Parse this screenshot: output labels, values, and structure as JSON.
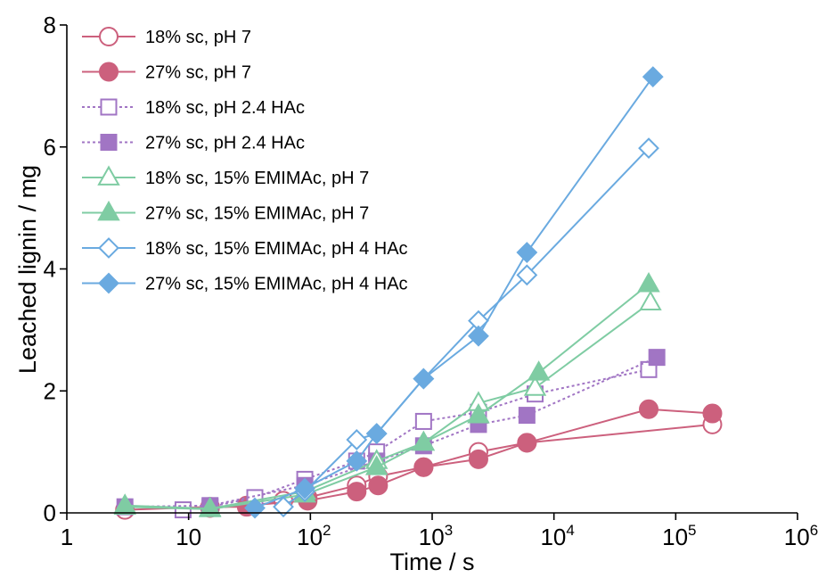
{
  "chart_data": {
    "type": "scatter",
    "xlabel": "Time / s",
    "ylabel": "Leached lignin / mg",
    "x_scale": "log",
    "xlim": [
      1,
      1000000
    ],
    "ylim": [
      0,
      8
    ],
    "x_ticks": [
      {
        "value": 1,
        "label": "1"
      },
      {
        "value": 10,
        "label": "10"
      },
      {
        "value": 100,
        "base": "10",
        "exp": "2"
      },
      {
        "value": 1000,
        "base": "10",
        "exp": "3"
      },
      {
        "value": 10000,
        "base": "10",
        "exp": "4"
      },
      {
        "value": 100000,
        "base": "10",
        "exp": "5"
      },
      {
        "value": 1000000,
        "base": "10",
        "exp": "6"
      }
    ],
    "y_ticks": [
      0,
      2,
      4,
      6,
      8
    ],
    "grid": false,
    "legend_position": "top-left",
    "series": [
      {
        "name": "18% sc, pH 7",
        "color": "#cc607d",
        "marker": "circle",
        "filled": false,
        "dashed": false,
        "x": [
          3,
          15,
          30,
          60,
          95,
          240,
          360,
          850,
          2400,
          6000,
          200000
        ],
        "y": [
          0.05,
          0.1,
          0.1,
          0.2,
          0.25,
          0.45,
          0.6,
          0.75,
          1.0,
          1.15,
          1.45
        ]
      },
      {
        "name": "27% sc, pH 7",
        "color": "#cc607d",
        "marker": "circle",
        "filled": true,
        "dashed": false,
        "x": [
          15,
          30,
          95,
          240,
          360,
          850,
          2400,
          6000,
          60000,
          200000
        ],
        "y": [
          0.08,
          0.12,
          0.2,
          0.35,
          0.45,
          0.75,
          0.88,
          1.15,
          1.7,
          1.63
        ]
      },
      {
        "name": "18% sc, pH 2.4 HAc",
        "color": "#a175c4",
        "marker": "square",
        "filled": false,
        "dashed": true,
        "x": [
          9,
          15,
          35,
          90,
          240,
          350,
          850,
          2400,
          7000,
          60000
        ],
        "y": [
          0.05,
          0.1,
          0.25,
          0.55,
          0.85,
          1.0,
          1.5,
          1.65,
          1.95,
          2.35
        ]
      },
      {
        "name": "27% sc, pH 2.4 HAc",
        "color": "#a175c4",
        "marker": "square",
        "filled": true,
        "dashed": true,
        "x": [
          3,
          15,
          90,
          350,
          850,
          2400,
          6000,
          70000
        ],
        "y": [
          0.1,
          0.12,
          0.45,
          0.85,
          1.1,
          1.45,
          1.6,
          2.55
        ]
      },
      {
        "name": "18% sc, 15% EMIMAc, pH 7",
        "color": "#7fcca3",
        "marker": "triangle",
        "filled": false,
        "dashed": false,
        "x": [
          3,
          15,
          90,
          350,
          850,
          2400,
          7000,
          62000
        ],
        "y": [
          0.12,
          0.07,
          0.35,
          0.85,
          1.15,
          1.8,
          2.05,
          3.45
        ]
      },
      {
        "name": "27% sc, 15% EMIMAc, pH 7",
        "color": "#7fcca3",
        "marker": "triangle",
        "filled": true,
        "dashed": false,
        "x": [
          3,
          15,
          90,
          350,
          850,
          2400,
          7500,
          60000
        ],
        "y": [
          0.1,
          0.06,
          0.3,
          0.75,
          1.15,
          1.6,
          2.3,
          3.75
        ]
      },
      {
        "name": "18% sc, 15% EMIMAc, pH 4 HAc",
        "color": "#6aaae0",
        "marker": "diamond",
        "filled": false,
        "dashed": false,
        "x": [
          60,
          90,
          240,
          350,
          850,
          2400,
          6000,
          60000
        ],
        "y": [
          0.1,
          0.35,
          1.2,
          1.3,
          2.2,
          3.15,
          3.9,
          5.98
        ]
      },
      {
        "name": "27% sc, 15% EMIMAc, pH 4 HAc",
        "color": "#6aaae0",
        "marker": "diamond",
        "filled": true,
        "dashed": false,
        "x": [
          35,
          90,
          240,
          350,
          850,
          2400,
          6000,
          65000
        ],
        "y": [
          0.08,
          0.4,
          0.85,
          1.3,
          2.2,
          2.9,
          4.27,
          7.15
        ]
      }
    ]
  }
}
